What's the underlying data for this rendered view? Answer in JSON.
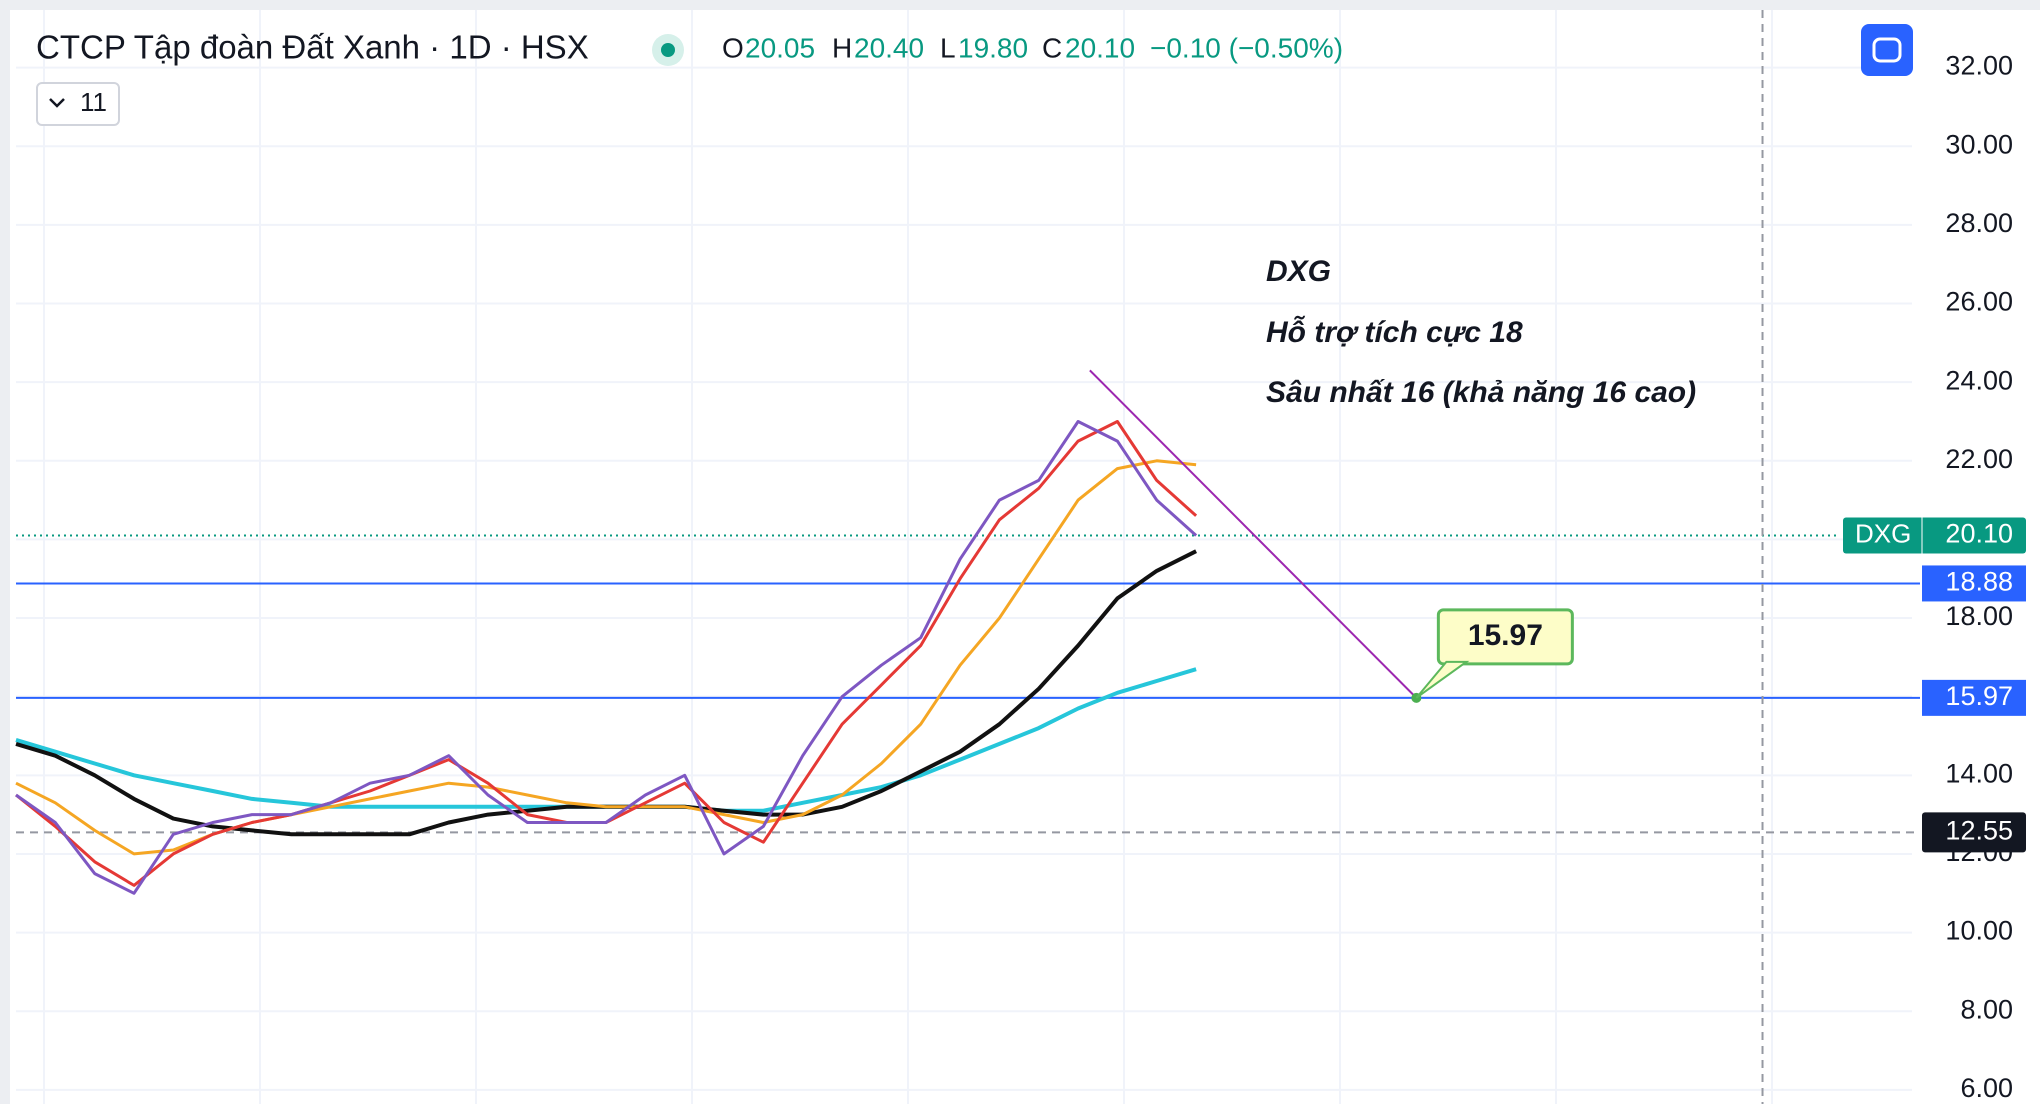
{
  "chart_data": {
    "type": "line",
    "title": "CTCP Tập đoàn Đất Xanh · 1D · HSX",
    "open_label": "O",
    "open": 20.05,
    "high_label": "H",
    "high": 20.4,
    "high_text": "20.40",
    "low_label": "L",
    "low": 19.8,
    "low_text": "19.80",
    "close_label": "C",
    "close": 20.1,
    "close_text": "20.10",
    "change": "−0.10 (−0.50%)",
    "indicator_count": "11",
    "symbol": "DXG",
    "last_price": {
      "value": 20.1,
      "label": "20.10"
    },
    "annotations": [
      "DXG",
      "Hỗ trợ tích cực 18",
      "Sâu nhất 16 (khả năng 16 cao)"
    ],
    "x": [
      0,
      1,
      2,
      3,
      4,
      5,
      6,
      7,
      8,
      9,
      10,
      11,
      12,
      13,
      14,
      15,
      16,
      17,
      18,
      19,
      20,
      21,
      22,
      23,
      24,
      25,
      26,
      27,
      28,
      29,
      30
    ],
    "xlim": [
      0,
      48.2
    ],
    "ylim": [
      5.64,
      33.72
    ],
    "yticks": [
      {
        "value": 6,
        "label": "6.00"
      },
      {
        "value": 8,
        "label": "8.00"
      },
      {
        "value": 10,
        "label": "10.00"
      },
      {
        "value": 12,
        "label": "12.00"
      },
      {
        "value": 14,
        "label": "14.00"
      },
      {
        "value": 16,
        "label": "16.00"
      },
      {
        "value": 18,
        "label": "18.00"
      },
      {
        "value": 20,
        "label": "20.00"
      },
      {
        "value": 22,
        "label": "22.00"
      },
      {
        "value": 24,
        "label": "24.00"
      },
      {
        "value": 26,
        "label": "26.00"
      },
      {
        "value": 28,
        "label": "28.00"
      },
      {
        "value": 30,
        "label": "30.00"
      },
      {
        "value": 32,
        "label": "32.00"
      }
    ],
    "grid": true,
    "series": [
      {
        "color": "#26c6da",
        "values": [
          14.9,
          14.6,
          14.3,
          14.0,
          13.8,
          13.6,
          13.4,
          13.3,
          13.2,
          13.2,
          13.2,
          13.2,
          13.2,
          13.2,
          13.2,
          13.2,
          13.2,
          13.2,
          13.1,
          13.1,
          13.3,
          13.5,
          13.7,
          14.0,
          14.4,
          14.8,
          15.2,
          15.7,
          16.1,
          16.4,
          16.7
        ]
      },
      {
        "color": "#111111",
        "values": [
          14.8,
          14.5,
          14.0,
          13.4,
          12.9,
          12.7,
          12.6,
          12.5,
          12.5,
          12.5,
          12.5,
          12.8,
          13.0,
          13.1,
          13.2,
          13.2,
          13.2,
          13.2,
          13.1,
          13.0,
          13.0,
          13.2,
          13.6,
          14.1,
          14.6,
          15.3,
          16.2,
          17.3,
          18.5,
          19.2,
          19.7
        ]
      },
      {
        "color": "#f5a623",
        "values": [
          13.8,
          13.3,
          12.6,
          12.0,
          12.1,
          12.5,
          12.8,
          13.0,
          13.2,
          13.4,
          13.6,
          13.8,
          13.7,
          13.5,
          13.3,
          13.2,
          13.2,
          13.2,
          13.0,
          12.8,
          13.0,
          13.5,
          14.3,
          15.3,
          16.8,
          18.0,
          19.5,
          21.0,
          21.8,
          22.0,
          21.9
        ]
      },
      {
        "color": "#e53935",
        "values": [
          13.5,
          12.7,
          11.8,
          11.2,
          12.0,
          12.5,
          12.8,
          13.0,
          13.3,
          13.6,
          14.0,
          14.4,
          13.8,
          13.0,
          12.8,
          12.8,
          13.3,
          13.8,
          12.8,
          12.3,
          13.8,
          15.3,
          16.3,
          17.3,
          19.0,
          20.5,
          21.3,
          22.5,
          23.0,
          21.5,
          20.6
        ]
      },
      {
        "color": "#7e57c2",
        "values": [
          13.5,
          12.8,
          11.5,
          11.0,
          12.5,
          12.8,
          13.0,
          13.0,
          13.3,
          13.8,
          14.0,
          14.5,
          13.5,
          12.8,
          12.8,
          12.8,
          13.5,
          14.0,
          12.0,
          12.7,
          14.5,
          16.0,
          16.8,
          17.5,
          19.5,
          21.0,
          21.5,
          23.0,
          22.5,
          21.0,
          20.1
        ]
      }
    ],
    "hlines": [
      {
        "value": 18.88,
        "color": "#2962ff"
      },
      {
        "value": 15.97,
        "color": "#2962ff"
      }
    ],
    "crosshair": {
      "x": 44.4,
      "y": 12.55
    },
    "trendline": {
      "x": [
        27.3,
        35.6
      ],
      "y": [
        24.3,
        15.97
      ],
      "color": "#9c27b0"
    }
  }
}
